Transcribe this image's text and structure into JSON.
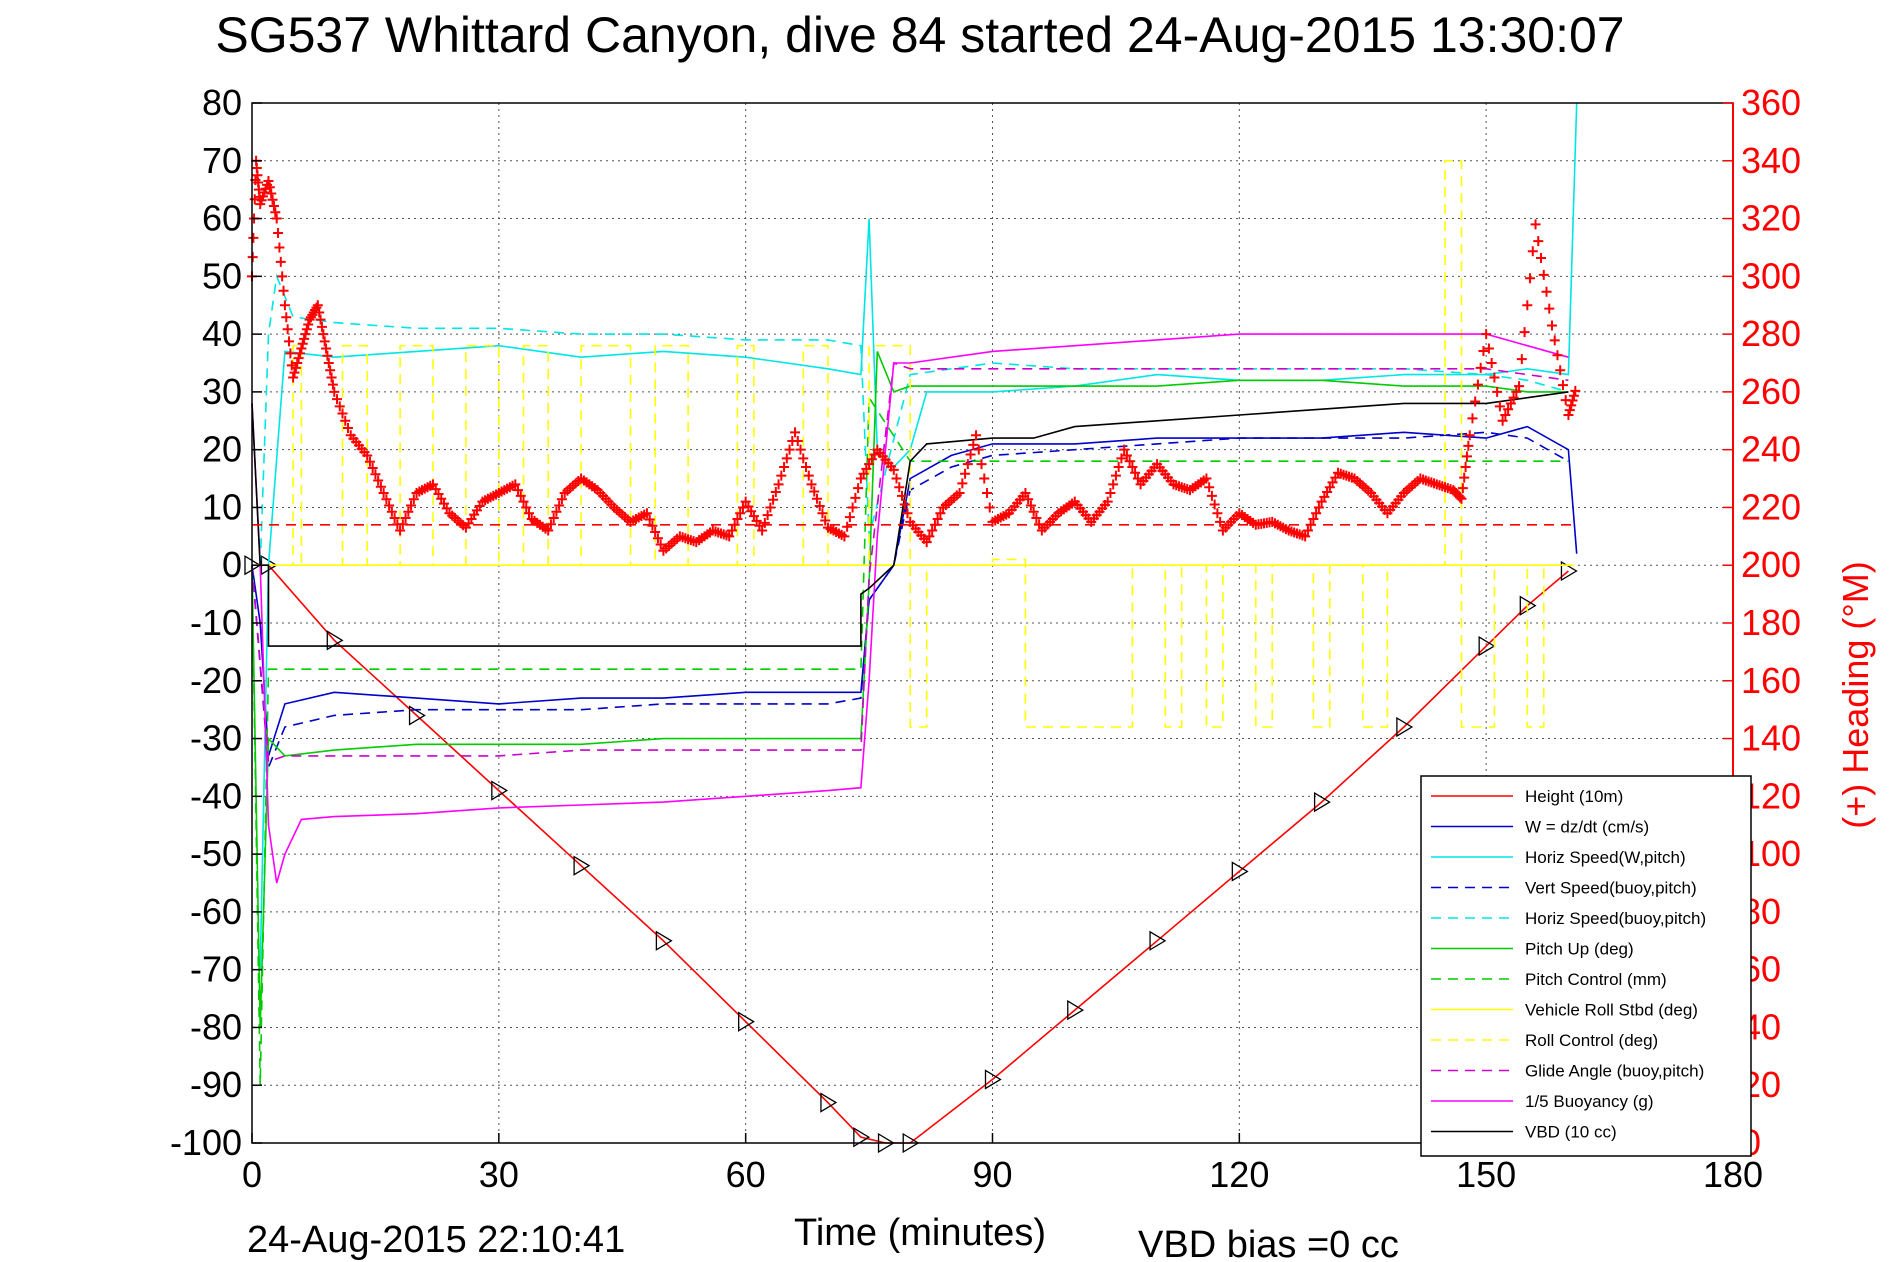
{
  "chart_data": {
    "type": "line",
    "title": "SG537 Whittard Canyon, dive 84 started 24-Aug-2015 13:30:07",
    "xlabel": "Time (minutes)",
    "ylabel_right": "(+) Heading (°M)",
    "footer_left": "24-Aug-2015 22:10:41",
    "footer_right": "VBD bias =0 cc",
    "xlim": [
      0,
      180
    ],
    "ylim": [
      -100,
      80
    ],
    "ylim_right": [
      0,
      360
    ],
    "xticks": [
      0,
      30,
      60,
      90,
      120,
      150,
      180
    ],
    "yticks": [
      80,
      70,
      60,
      50,
      40,
      30,
      20,
      10,
      0,
      -10,
      -20,
      -30,
      -40,
      -50,
      -60,
      -70,
      -80,
      -90,
      -100
    ],
    "yticks_right": [
      360,
      340,
      320,
      300,
      280,
      260,
      240,
      220,
      200,
      180,
      160,
      140,
      120,
      100,
      80,
      60,
      40,
      20,
      0
    ],
    "grid": true,
    "legend_position": "bottom-right",
    "colors": {
      "axis": "#000000",
      "right_axis": "#ff0000"
    },
    "series": [
      {
        "name": "Height (10m)",
        "color": "#ff0000",
        "dash": "solid",
        "x": [
          0,
          2,
          10,
          20,
          30,
          40,
          50,
          60,
          70,
          74,
          77,
          80,
          90,
          100,
          110,
          120,
          130,
          140,
          150,
          155,
          160
        ],
        "y": [
          0,
          0,
          -13,
          -26,
          -39,
          -52,
          -65,
          -79,
          -93,
          -99,
          -100,
          -100,
          -89,
          -77,
          -65,
          -53,
          -41,
          -28,
          -14,
          -7,
          -1
        ],
        "markers": "triangle"
      },
      {
        "name": "W = dz/dt (cm/s)",
        "color": "#0000cc",
        "dash": "solid",
        "x": [
          0,
          1,
          2,
          4,
          10,
          20,
          30,
          40,
          50,
          60,
          70,
          74,
          75,
          78,
          80,
          85,
          90,
          100,
          110,
          120,
          130,
          140,
          150,
          155,
          160,
          161
        ],
        "y": [
          0,
          -10,
          -33,
          -24,
          -22,
          -23,
          -24,
          -23,
          -23,
          -22,
          -22,
          -22,
          -6,
          0,
          15,
          19,
          21,
          21,
          22,
          22,
          22,
          23,
          22,
          24,
          20,
          2
        ]
      },
      {
        "name": "Horiz Speed(W,pitch)",
        "color": "#00e5e5",
        "dash": "solid",
        "x": [
          1,
          2,
          4,
          10,
          20,
          30,
          40,
          50,
          60,
          70,
          74,
          75,
          76,
          78,
          80,
          82,
          90,
          100,
          110,
          120,
          130,
          140,
          150,
          155,
          160,
          161
        ],
        "y": [
          -70,
          0,
          37,
          36,
          37,
          38,
          36,
          37,
          36,
          34,
          33,
          60,
          20,
          17,
          20,
          30,
          30,
          31,
          33,
          32,
          32,
          33,
          33,
          34,
          33,
          80
        ]
      },
      {
        "name": "Vert Speed(buoy,pitch)",
        "color": "#0000cc",
        "dash": "dashed",
        "x": [
          0,
          2,
          4,
          10,
          20,
          30,
          40,
          50,
          60,
          70,
          74,
          75,
          78,
          80,
          85,
          90,
          100,
          110,
          120,
          130,
          140,
          150,
          155,
          160
        ],
        "y": [
          0,
          -35,
          -28,
          -26,
          -25,
          -25,
          -25,
          -24,
          -24,
          -24,
          -23,
          -6,
          0,
          13,
          17,
          19,
          20,
          21,
          22,
          22,
          22,
          23,
          22,
          18
        ]
      },
      {
        "name": "Horiz Speed(buoy,pitch)",
        "color": "#00e5e5",
        "dash": "dashed",
        "x": [
          1,
          2,
          3,
          5,
          10,
          20,
          30,
          40,
          50,
          60,
          70,
          74,
          75,
          80,
          85,
          90,
          100,
          110,
          120,
          130,
          140,
          150,
          155,
          160
        ],
        "y": [
          0,
          40,
          50,
          43,
          42,
          41,
          41,
          40,
          40,
          39,
          39,
          38,
          5,
          33,
          34,
          35,
          34,
          34,
          34,
          34,
          34,
          33,
          32,
          30
        ]
      },
      {
        "name": "Pitch Up (deg)",
        "color": "#00cc00",
        "dash": "solid",
        "x": [
          0,
          1,
          2,
          4,
          10,
          20,
          30,
          40,
          50,
          60,
          70,
          74,
          75,
          76,
          78,
          80,
          90,
          100,
          110,
          120,
          130,
          140,
          150,
          155,
          160
        ],
        "y": [
          0,
          -80,
          -30,
          -33,
          -32,
          -31,
          -31,
          -31,
          -30,
          -30,
          -30,
          -30,
          -3,
          37,
          30,
          31,
          31,
          31,
          31,
          32,
          32,
          31,
          31,
          30,
          30
        ]
      },
      {
        "name": "Pitch Control (mm)",
        "color": "#00cc00",
        "dash": "dashed",
        "x": [
          0,
          1,
          2,
          4,
          10,
          20,
          30,
          40,
          50,
          60,
          70,
          74,
          75,
          80,
          90,
          100,
          110,
          120,
          130,
          140,
          150,
          155,
          160
        ],
        "y": [
          0,
          -90,
          -18,
          -18,
          -18,
          -18,
          -18,
          -18,
          -18,
          -18,
          -18,
          -18,
          29,
          18,
          18,
          18,
          18,
          18,
          18,
          18,
          18,
          18,
          18
        ]
      },
      {
        "name": "Vehicle Roll Stbd (deg)",
        "color": "#ffff00",
        "dash": "solid",
        "x": [
          0,
          160
        ],
        "y": [
          0,
          0
        ]
      },
      {
        "name": "Roll Control (deg)",
        "color": "#ffff00",
        "dash": "dashed",
        "x": [
          0,
          5,
          5,
          6,
          6,
          11,
          11,
          14,
          14,
          18,
          18,
          22,
          22,
          26,
          26,
          30,
          30,
          33,
          33,
          36,
          36,
          40,
          40,
          46,
          46,
          49,
          49,
          53,
          53,
          59,
          59,
          61,
          61,
          67,
          67,
          70,
          70,
          75,
          75,
          80,
          80,
          82,
          82,
          90,
          90,
          94,
          94,
          107,
          107,
          111,
          111,
          113,
          113,
          116,
          116,
          118,
          118,
          122,
          122,
          124,
          124,
          129,
          129,
          131,
          131,
          135,
          135,
          138,
          138,
          140,
          140,
          145,
          145,
          147,
          147,
          151,
          151,
          155,
          155,
          157,
          157,
          161
        ],
        "y": [
          0,
          0,
          38,
          38,
          0,
          0,
          38,
          38,
          0,
          0,
          38,
          38,
          0,
          0,
          38,
          38,
          0,
          0,
          38,
          38,
          0,
          0,
          38,
          38,
          0,
          0,
          38,
          38,
          0,
          0,
          38,
          38,
          0,
          0,
          38,
          38,
          0,
          0,
          38,
          38,
          -28,
          -28,
          0,
          0,
          1,
          1,
          -28,
          -28,
          0,
          0,
          -28,
          -28,
          0,
          0,
          -28,
          -28,
          0,
          0,
          -28,
          -28,
          0,
          0,
          -28,
          -28,
          0,
          0,
          -28,
          -28,
          0,
          0,
          0,
          0,
          70,
          70,
          -28,
          -28,
          0,
          0,
          -28,
          -28,
          0,
          0
        ]
      },
      {
        "name": "Glide Angle (buoy,pitch)",
        "color": "#cc00cc",
        "dash": "dashed",
        "x": [
          0,
          2,
          4,
          10,
          20,
          30,
          40,
          50,
          60,
          70,
          74,
          75,
          78,
          80,
          90,
          100,
          110,
          120,
          130,
          140,
          150,
          155,
          160
        ],
        "y": [
          0,
          -34,
          -33,
          -33,
          -33,
          -33,
          -32,
          -32,
          -32,
          -32,
          -32,
          -2,
          35,
          34,
          34,
          34,
          34,
          34,
          34,
          34,
          34,
          33,
          32
        ]
      },
      {
        "name": "1/5 Buoyancy (g)",
        "color": "#ff00ff",
        "dash": "solid",
        "x": [
          0,
          1,
          2,
          3,
          4,
          6,
          10,
          20,
          30,
          40,
          50,
          60,
          70,
          74,
          75,
          76,
          78,
          80,
          90,
          100,
          110,
          120,
          130,
          140,
          150,
          155,
          160
        ],
        "y": [
          28,
          0,
          -45,
          -55,
          -50,
          -44,
          -43.5,
          -43,
          -42,
          -41.5,
          -41,
          -40,
          -39,
          -38.5,
          -20,
          5,
          35,
          35,
          37,
          38,
          39,
          40,
          40,
          40,
          40,
          38,
          36
        ]
      },
      {
        "name": "VBD (10 cc)",
        "color": "#000000",
        "dash": "solid",
        "x": [
          0,
          1,
          2,
          2,
          74,
          74,
          75,
          78,
          80,
          82,
          90,
          95,
          100,
          110,
          120,
          130,
          140,
          150,
          155,
          160
        ],
        "y": [
          28,
          0,
          0,
          -14,
          -14,
          -5,
          -4,
          0,
          18,
          21,
          22,
          22,
          24,
          25,
          26,
          27,
          28,
          28,
          29,
          30
        ]
      },
      {
        "name": "Heading",
        "color": "#ff0000",
        "dash": "markers-plus",
        "axis": "right",
        "x": [
          0,
          0.5,
          1,
          2,
          3,
          4,
          5,
          6,
          7,
          8,
          9,
          10,
          12,
          14,
          16,
          18,
          20,
          22,
          24,
          26,
          28,
          30,
          32,
          34,
          36,
          38,
          40,
          42,
          44,
          46,
          48,
          50,
          52,
          54,
          56,
          58,
          60,
          62,
          64,
          66,
          68,
          70,
          72,
          74,
          76,
          78,
          80,
          82,
          84,
          86,
          88,
          90,
          92,
          94,
          96,
          98,
          100,
          102,
          104,
          106,
          108,
          110,
          112,
          114,
          116,
          118,
          120,
          122,
          124,
          126,
          128,
          130,
          132,
          134,
          136,
          138,
          140,
          142,
          144,
          146,
          147,
          148,
          150,
          152,
          154,
          156,
          158,
          160,
          161
        ],
        "y": [
          300,
          340,
          325,
          333,
          320,
          290,
          265,
          275,
          285,
          290,
          275,
          260,
          245,
          238,
          225,
          212,
          225,
          228,
          218,
          213,
          222,
          225,
          228,
          216,
          212,
          225,
          230,
          226,
          220,
          215,
          218,
          205,
          210,
          208,
          212,
          210,
          222,
          212,
          228,
          246,
          228,
          213,
          210,
          230,
          240,
          233,
          215,
          208,
          220,
          225,
          245,
          215,
          218,
          225,
          212,
          218,
          222,
          215,
          222,
          240,
          228,
          235,
          228,
          226,
          230,
          212,
          218,
          214,
          215,
          212,
          210,
          222,
          232,
          230,
          225,
          218,
          225,
          230,
          228,
          226,
          223,
          245,
          280,
          250,
          262,
          318,
          283,
          252,
          262
        ]
      },
      {
        "name": "Heading reference",
        "color": "#ff0000",
        "dash": "dashed",
        "axis": "right",
        "x": [
          0,
          161
        ],
        "y": [
          214,
          214
        ]
      }
    ],
    "legend": [
      "Height (10m)",
      "W = dz/dt (cm/s)",
      "Horiz Speed(W,pitch)",
      "Vert Speed(buoy,pitch)",
      "Horiz Speed(buoy,pitch)",
      "Pitch Up (deg)",
      "Pitch Control (mm)",
      "Vehicle Roll Stbd (deg)",
      "Roll Control (deg)",
      "Glide Angle (buoy,pitch)",
      "1/5 Buoyancy (g)",
      "VBD (10 cc)"
    ]
  }
}
